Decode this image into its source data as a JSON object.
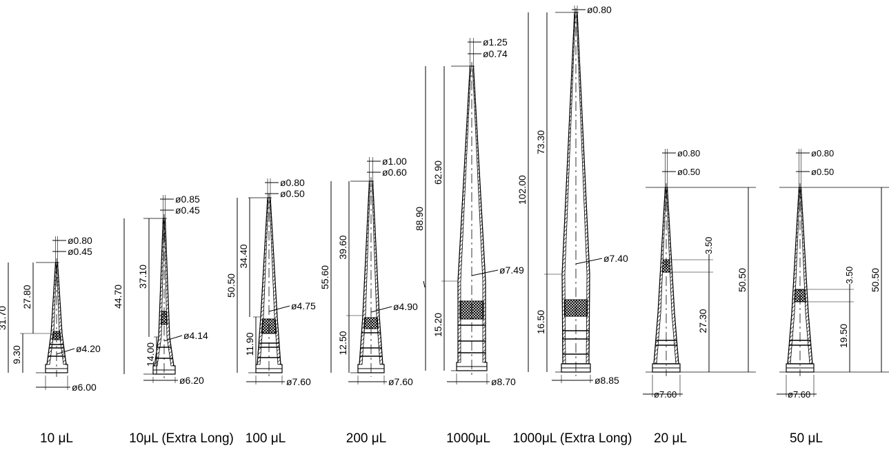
{
  "tips": [
    {
      "caption": "10 μL",
      "tip_diameter": "ø0.80",
      "tip_inner": "ø0.45",
      "total_length": "31.70",
      "taper_length": "27.80",
      "base_height": "9.30",
      "shoulder_diameter": "ø4.20",
      "base_diameter": "ø6.00"
    },
    {
      "caption": "10μL (Extra Long)",
      "tip_diameter": "ø0.85",
      "tip_inner": "ø0.45",
      "total_length": "44.70",
      "taper_length": "37.10",
      "base_height": "14.00",
      "shoulder_diameter": "ø4.14",
      "base_diameter": "ø6.20"
    },
    {
      "caption": "100 μL",
      "tip_diameter": "ø0.80",
      "tip_inner": "ø0.50",
      "total_length": "50.50",
      "taper_length": "34.40",
      "base_height": "11.90",
      "shoulder_diameter": "ø4.75",
      "base_diameter": "ø7.60"
    },
    {
      "caption": "200 μL",
      "tip_diameter": "ø1.00",
      "tip_inner": "ø0.60",
      "total_length": "55.60",
      "taper_length": "39.60",
      "base_height": "12.50",
      "shoulder_diameter": "ø4.90",
      "base_diameter": "ø7.60"
    },
    {
      "caption": "1000μL",
      "tip_diameter": "ø1.25",
      "tip_inner": "ø0.74",
      "total_length": "88.90",
      "taper_length": "62.90",
      "base_height": "15.20",
      "shoulder_diameter": "ø7.49",
      "base_diameter": "ø8.70"
    },
    {
      "caption": "1000μL (Extra Long)",
      "tip_diameter": "ø0.80",
      "total_length": "102.00",
      "taper_length": "73.30",
      "base_height": "16.50",
      "shoulder_diameter": "ø7.40",
      "base_diameter": "ø8.85"
    },
    {
      "caption": "20 μL",
      "tip_diameter": "ø0.80",
      "tip_inner": "ø0.50",
      "total_length": "50.50",
      "filter_height": "3.50",
      "taper_length": "27.30",
      "base_diameter": "ø7.60"
    },
    {
      "caption": "50 μL",
      "tip_diameter": "ø0.80",
      "tip_inner": "ø0.50",
      "total_length": "50.50",
      "filter_height": "3.50",
      "taper_length": "19.50",
      "base_diameter": "ø7.60"
    }
  ]
}
